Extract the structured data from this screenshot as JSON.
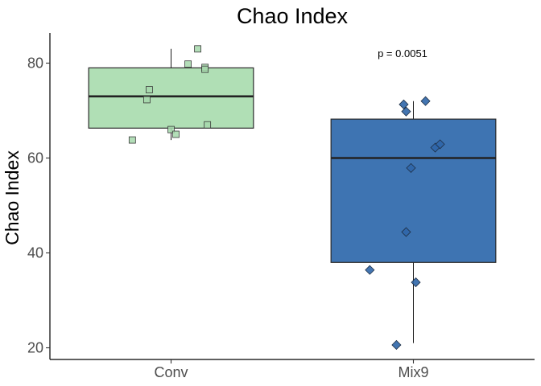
{
  "chart_data": {
    "type": "box",
    "title": "Chao Index",
    "xlabel": "",
    "ylabel": "Chao Index",
    "ylim": [
      17.5,
      86
    ],
    "yticks": [
      20,
      40,
      60,
      80
    ],
    "grid": false,
    "legend": "none",
    "annotation": "p = 0.0051",
    "categories": [
      "Conv",
      "Mix9"
    ],
    "boxes": [
      {
        "category": "Conv",
        "fill": "#b0dfb5",
        "point_fill": "#a6d8ab",
        "marker": "square",
        "min": 63.8,
        "q1": 66.3,
        "median": 73.0,
        "q3": 79.0,
        "max": 83.0,
        "points": [
          {
            "x": -0.16,
            "y": 63.8
          },
          {
            "x": 0.0,
            "y": 66.0
          },
          {
            "x": 0.02,
            "y": 65.0
          },
          {
            "x": 0.15,
            "y": 67.0
          },
          {
            "x": -0.1,
            "y": 72.3
          },
          {
            "x": -0.09,
            "y": 74.4
          },
          {
            "x": 0.07,
            "y": 79.8
          },
          {
            "x": 0.14,
            "y": 79.1
          },
          {
            "x": 0.14,
            "y": 78.7
          },
          {
            "x": 0.11,
            "y": 83.0
          }
        ]
      },
      {
        "category": "Mix9",
        "fill": "#3e74b2",
        "point_fill": "#2f66a8",
        "marker": "diamond",
        "min": 21.0,
        "q1": 38.0,
        "median": 60.0,
        "q3": 68.2,
        "max": 72.0,
        "points": [
          {
            "x": -0.07,
            "y": 20.6
          },
          {
            "x": 0.01,
            "y": 33.8
          },
          {
            "x": -0.18,
            "y": 36.4
          },
          {
            "x": -0.03,
            "y": 44.4
          },
          {
            "x": -0.01,
            "y": 57.9
          },
          {
            "x": 0.09,
            "y": 62.2
          },
          {
            "x": 0.11,
            "y": 62.9
          },
          {
            "x": -0.03,
            "y": 69.8
          },
          {
            "x": -0.04,
            "y": 71.3
          },
          {
            "x": 0.05,
            "y": 72.0
          }
        ]
      }
    ]
  }
}
